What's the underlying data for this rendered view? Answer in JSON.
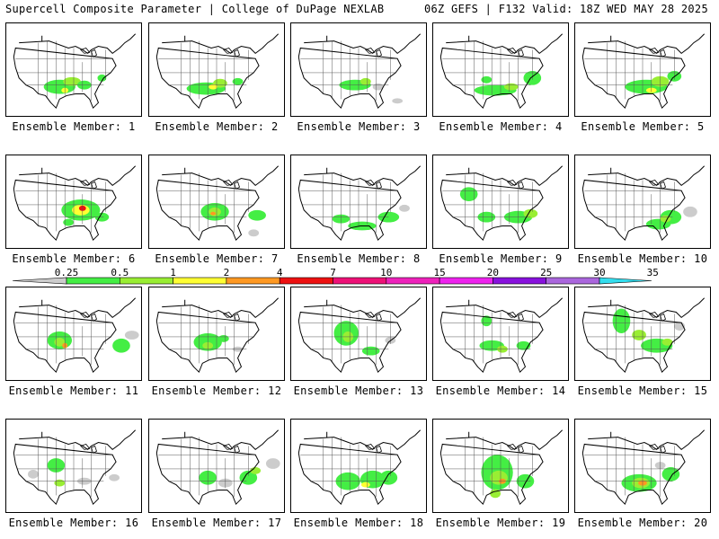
{
  "header": {
    "left": "Supercell Composite Parameter | College of DuPage NEXLAB",
    "right": "06Z GEFS | F132 Valid: 18Z WED MAY 28 2025"
  },
  "colorbar": {
    "ticks": [
      "0.25",
      "0.5",
      "1",
      "2",
      "4",
      "7",
      "10",
      "15",
      "20",
      "25",
      "30",
      "35"
    ],
    "colors": [
      "#cccccc",
      "#44ee44",
      "#99ee33",
      "#ffff33",
      "#ff9922",
      "#ee1111",
      "#ee1177",
      "#ee22bb",
      "#ee22ee",
      "#8811dd",
      "#aa66dd",
      "#33ddee"
    ]
  },
  "panels": [
    {
      "label": "Ensemble Member: 1"
    },
    {
      "label": "Ensemble Member: 2"
    },
    {
      "label": "Ensemble Member: 3"
    },
    {
      "label": "Ensemble Member: 4"
    },
    {
      "label": "Ensemble Member: 5"
    },
    {
      "label": "Ensemble Member: 6"
    },
    {
      "label": "Ensemble Member: 7"
    },
    {
      "label": "Ensemble Member: 8"
    },
    {
      "label": "Ensemble Member: 9"
    },
    {
      "label": "Ensemble Member: 10"
    },
    {
      "label": "Ensemble Member: 11"
    },
    {
      "label": "Ensemble Member: 12"
    },
    {
      "label": "Ensemble Member: 13"
    },
    {
      "label": "Ensemble Member: 14"
    },
    {
      "label": "Ensemble Member: 15"
    },
    {
      "label": "Ensemble Member: 16"
    },
    {
      "label": "Ensemble Member: 17"
    },
    {
      "label": "Ensemble Member: 18"
    },
    {
      "label": "Ensemble Member: 19"
    },
    {
      "label": "Ensemble Member: 20"
    }
  ]
}
